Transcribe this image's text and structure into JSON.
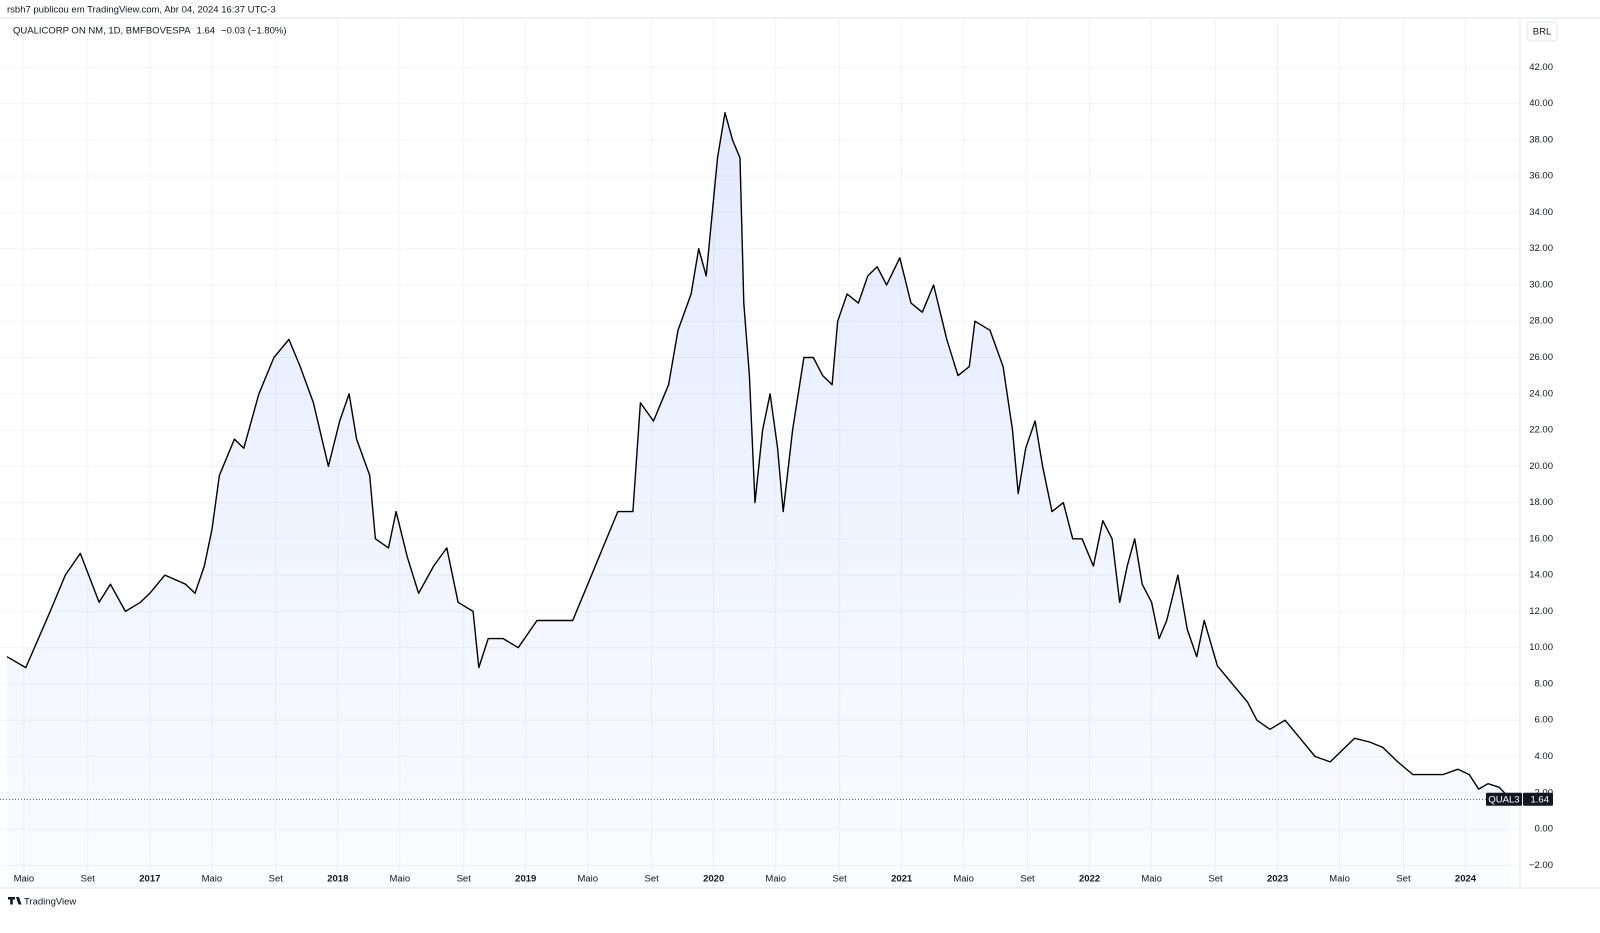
{
  "header": {
    "publisher": "rsbh7 publicou em TradingView.com, Abr 04, 2024 16:37 UTC-3",
    "footer": "TradingView"
  },
  "chart_data": {
    "type": "area",
    "title": "QUALICORP ON NM, 1D, BMFBOVESPA",
    "change": "−0.03 (−1.80%)",
    "currency": "BRL",
    "ticker": "QUAL3",
    "last": 1.64,
    "color": "#000000",
    "fill": "#2962ff",
    "grid": true,
    "xlim": [
      2016.24,
      2024.29
    ],
    "ylim": [
      -2.15,
      44.5
    ],
    "xticks": [
      {
        "value": 2016.33,
        "label": "Maio"
      },
      {
        "value": 2016.67,
        "label": "Set"
      },
      2017,
      {
        "value": 2017.33,
        "label": "Maio"
      },
      {
        "value": 2017.67,
        "label": "Set"
      },
      2018,
      {
        "value": 2018.33,
        "label": "Maio"
      },
      {
        "value": 2018.67,
        "label": "Set"
      },
      2019,
      {
        "value": 2019.33,
        "label": "Maio"
      },
      {
        "value": 2019.67,
        "label": "Set"
      },
      2020,
      {
        "value": 2020.33,
        "label": "Maio"
      },
      {
        "value": 2020.67,
        "label": "Set"
      },
      2021,
      {
        "value": 2021.33,
        "label": "Maio"
      },
      {
        "value": 2021.67,
        "label": "Set"
      },
      2022,
      {
        "value": 2022.33,
        "label": "Maio"
      },
      {
        "value": 2022.67,
        "label": "Set"
      },
      2023,
      {
        "value": 2023.33,
        "label": "Maio"
      },
      {
        "value": 2023.67,
        "label": "Set"
      },
      2024
    ],
    "yticks": [
      {
        "value": -2,
        "label": "−2.00"
      },
      {
        "value": 0,
        "label": "0.00"
      },
      {
        "value": 2,
        "label": "2.00"
      },
      {
        "value": 4,
        "label": "4.00"
      },
      {
        "value": 6,
        "label": "6.00"
      },
      {
        "value": 8,
        "label": "8.00"
      },
      {
        "value": 10,
        "label": "10.00"
      },
      {
        "value": 12,
        "label": "12.00"
      },
      {
        "value": 14,
        "label": "14.00"
      },
      {
        "value": 16,
        "label": "16.00"
      },
      {
        "value": 18,
        "label": "18.00"
      },
      {
        "value": 20,
        "label": "20.00"
      },
      {
        "value": 22,
        "label": "22.00"
      },
      {
        "value": 24,
        "label": "24.00"
      },
      {
        "value": 26,
        "label": "26.00"
      },
      {
        "value": 28,
        "label": "28.00"
      },
      {
        "value": 30,
        "label": "30.00"
      },
      {
        "value": 32,
        "label": "32.00"
      },
      {
        "value": 34,
        "label": "34.00"
      },
      {
        "value": 36,
        "label": "36.00"
      },
      {
        "value": 38,
        "label": "38.00"
      },
      {
        "value": 40,
        "label": "40.00"
      },
      {
        "value": 42,
        "label": "42.00"
      }
    ],
    "x": [
      2016.24,
      2016.34,
      2016.47,
      2016.55,
      2016.63,
      2016.73,
      2016.79,
      2016.87,
      2016.95,
      2017.0,
      2017.08,
      2017.19,
      2017.24,
      2017.29,
      2017.33,
      2017.37,
      2017.45,
      2017.5,
      2017.58,
      2017.66,
      2017.74,
      2017.8,
      2017.87,
      2017.95,
      2018.01,
      2018.06,
      2018.1,
      2018.17,
      2018.2,
      2018.27,
      2018.31,
      2018.37,
      2018.43,
      2018.51,
      2018.58,
      2018.64,
      2018.72,
      2018.75,
      2018.8,
      2018.88,
      2018.96,
      2019.06,
      2019.14,
      2019.25,
      2019.33,
      2019.41,
      2019.49,
      2019.57,
      2019.61,
      2019.68,
      2019.76,
      2019.81,
      2019.88,
      2019.92,
      2019.96,
      2020.02,
      2020.06,
      2020.1,
      2020.14,
      2020.16,
      2020.19,
      2020.22,
      2020.26,
      2020.3,
      2020.34,
      2020.37,
      2020.42,
      2020.48,
      2020.53,
      2020.58,
      2020.63,
      2020.66,
      2020.71,
      2020.77,
      2020.82,
      2020.87,
      2020.92,
      2020.99,
      2021.05,
      2021.11,
      2021.17,
      2021.24,
      2021.3,
      2021.36,
      2021.39,
      2021.47,
      2021.54,
      2021.59,
      2021.62,
      2021.66,
      2021.71,
      2021.75,
      2021.8,
      2021.86,
      2021.91,
      2021.96,
      2022.02,
      2022.07,
      2022.12,
      2022.16,
      2022.2,
      2022.24,
      2022.28,
      2022.33,
      2022.37,
      2022.41,
      2022.47,
      2022.52,
      2022.57,
      2022.61,
      2022.68,
      2022.76,
      2022.84,
      2022.89,
      2022.96,
      2023.04,
      2023.12,
      2023.2,
      2023.28,
      2023.33,
      2023.41,
      2023.49,
      2023.56,
      2023.64,
      2023.72,
      2023.8,
      2023.88,
      2023.96,
      2024.02,
      2024.07,
      2024.12,
      2024.18,
      2024.24
    ],
    "values": [
      9.5,
      8.9,
      12.0,
      14.0,
      15.2,
      12.5,
      13.5,
      12.0,
      12.5,
      13.0,
      14.0,
      13.5,
      13.0,
      14.5,
      16.5,
      19.5,
      21.5,
      21.0,
      24.0,
      26.0,
      27.0,
      25.5,
      23.5,
      20.0,
      22.5,
      24.0,
      21.5,
      19.5,
      16.0,
      15.5,
      17.5,
      15.0,
      13.0,
      14.5,
      15.5,
      12.5,
      12.0,
      8.9,
      10.5,
      10.5,
      10.0,
      11.5,
      11.5,
      11.5,
      13.5,
      15.5,
      17.5,
      17.5,
      23.5,
      22.5,
      24.5,
      27.5,
      29.5,
      32.0,
      30.5,
      37.0,
      39.5,
      38.0,
      37.0,
      29.0,
      25.0,
      18.0,
      22.0,
      24.0,
      21.0,
      17.5,
      22.0,
      26.0,
      26.0,
      25.0,
      24.5,
      28.0,
      29.5,
      29.0,
      30.5,
      31.0,
      30.0,
      31.5,
      29.0,
      28.5,
      30.0,
      27.0,
      25.0,
      25.5,
      28.0,
      27.5,
      25.5,
      22.0,
      18.5,
      21.0,
      22.5,
      20.0,
      17.5,
      18.0,
      16.0,
      16.0,
      14.5,
      17.0,
      16.0,
      12.5,
      14.5,
      16.0,
      13.5,
      12.5,
      10.5,
      11.5,
      14.0,
      11.0,
      9.5,
      11.5,
      9.0,
      8.0,
      7.0,
      6.0,
      5.5,
      6.0,
      5.0,
      4.0,
      3.7,
      4.2,
      5.0,
      4.8,
      4.5,
      3.7,
      3.0,
      3.0,
      3.0,
      3.3,
      3.0,
      2.2,
      2.5,
      2.3,
      1.64
    ]
  }
}
